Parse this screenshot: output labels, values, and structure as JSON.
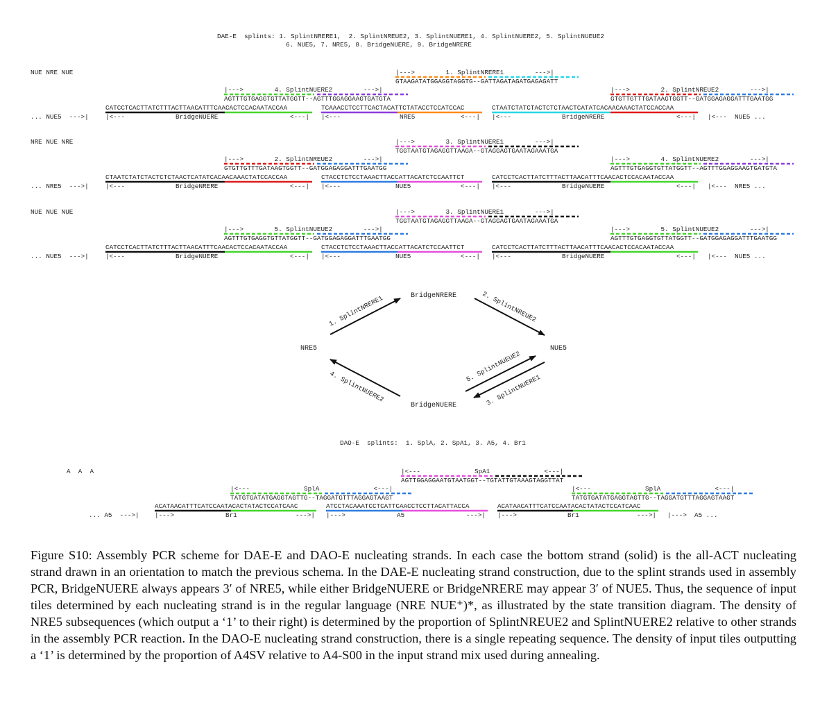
{
  "colors": {
    "black": "#111111",
    "green": "#44d62c",
    "purple": "#8b3cdc",
    "orange": "#ff8c1a",
    "cyan": "#28d7e6",
    "red": "#e01b1b",
    "blue": "#2f7de1",
    "magenta": "#e64fdc"
  },
  "dae": {
    "header_line1": "DAE-E  splints: 1. SplintNRERE1,  2. SplintNREUE2, 3. SplintNUERE1, 4. SplintNUERE2, 5. SplintNUEUE2",
    "header_line2": "6. NUE5, 7. NRE5, 8. BridgeNUERE, 9. BridgeNRERE",
    "panels": [
      {
        "seq_label": "NUE NRE NUE",
        "top": {
          "label": "|--->        1. SplintNRERE1        --->|",
          "seq": "GTAAGATATGGAGGTAGGTG--GATTAGATAGATGAGAGATT",
          "colors": [
            "orange",
            "cyan"
          ]
        },
        "mid_left": {
          "label": "|--->        4. SplintNUERE2        --->|",
          "seq": "AGTTTGTGAGGTGTTATGGTT--AGTTTGGAGGAAGTGATGTA",
          "colors": [
            "green",
            "purple"
          ]
        },
        "mid_right": {
          "label": "|--->        2. SplintNREUE2        --->|",
          "seq": "GTGTTGTTTGATAAGTGGTT--GATGGAGAGGATTTGAATGG",
          "colors": [
            "red",
            "blue"
          ]
        },
        "bottom": [
          {
            "seq": "CATCCTCACTTATCTTTACTTAACATTTCAACACTCCACAATACCAA",
            "colors": [
              "black",
              "green"
            ]
          },
          {
            "seq": "TCAAACCTCCTTCACTACATTCTATACCTCCATCCAC",
            "colors": [
              "purple",
              "orange"
            ]
          },
          {
            "seq": "CTAATCTATCTACTCTCTAACTCATATCACAACAAACTATCCACCAA",
            "colors": [
              "cyan",
              "red"
            ]
          }
        ],
        "ann_lead": "... NUE5  --->|",
        "ann_segments": [
          {
            "l": "|<---",
            "m": "BridgeNUERE",
            "r": "<---|"
          },
          {
            "l": "|<---",
            "m": "NRE5",
            "r": "<---|"
          },
          {
            "l": "|<---",
            "m": "BridgeNRERE",
            "r": "<---|"
          }
        ],
        "ann_tail": "|<---  NUE5 ..."
      },
      {
        "seq_label": "NRE NUE NRE",
        "top": {
          "label": "|--->        3. SplintNUERE1        --->|",
          "seq": "TGGTAATGTAGAGGTTAAGA--GTAGGAGTGAATAGAAATGA",
          "colors": [
            "magenta",
            "black"
          ]
        },
        "mid_left": {
          "label": "|--->        2. SplintNREUE2        --->|",
          "seq": "GTGTTGTTTGATAAGTGGTT--GATGGAGAGGATTTGAATGG",
          "colors": [
            "red",
            "blue"
          ]
        },
        "mid_right": {
          "label": "|--->        4. SplintNUERE2        --->|",
          "seq": "AGTTTGTGAGGTGTTATGGTT--AGTTTGGAGGAAGTGATGTA",
          "colors": [
            "green",
            "purple"
          ]
        },
        "bottom": [
          {
            "seq": "CTAATCTATCTACTCTCTAACTCATATCACAACAAACTATCCACCAA",
            "colors": [
              "black",
              "red"
            ]
          },
          {
            "seq": "CTACCTCTCCTAAACTTACCATTACATCTCCAATTCT",
            "colors": [
              "blue",
              "magenta"
            ]
          },
          {
            "seq": "CATCCTCACTTATCTTTACTTAACATTTCAACACTCCACAATACCAA",
            "colors": [
              "black",
              "green"
            ]
          }
        ],
        "ann_lead": "... NRE5  --->|",
        "ann_segments": [
          {
            "l": "|<---",
            "m": "BridgeNRERE",
            "r": "<---|"
          },
          {
            "l": "|<---",
            "m": "NUE5",
            "r": "<---|"
          },
          {
            "l": "|<---",
            "m": "BridgeNUERE",
            "r": "<---|"
          }
        ],
        "ann_tail": "|<---  NRE5 ..."
      },
      {
        "seq_label": "NUE NUE NUE",
        "top": {
          "label": "|--->        3. SplintNUERE1        --->|",
          "seq": "TGGTAATGTAGAGGTTAAGA--GTAGGAGTGAATAGAAATGA",
          "colors": [
            "magenta",
            "black"
          ]
        },
        "mid_left": {
          "label": "|--->        5. SplintNUEUE2        --->|",
          "seq": "AGTTTGTGAGGTGTTATGGTT--GATGGAGAGGATTTGAATGG",
          "colors": [
            "green",
            "blue"
          ]
        },
        "mid_right": {
          "label": "|--->        5. SplintNUEUE2        --->|",
          "seq": "AGTTTGTGAGGTGTTATGGTT--GATGGAGAGGATTTGAATGG",
          "colors": [
            "green",
            "blue"
          ]
        },
        "bottom": [
          {
            "seq": "CATCCTCACTTATCTTTACTTAACATTTCAACACTCCACAATACCAA",
            "colors": [
              "black",
              "green"
            ]
          },
          {
            "seq": "CTACCTCTCCTAAACTTACCATTACATCTCCAATTCT",
            "colors": [
              "blue",
              "magenta"
            ]
          },
          {
            "seq": "CATCCTCACTTATCTTTACTTAACATTTCAACACTCCACAATACCAA",
            "colors": [
              "black",
              "green"
            ]
          }
        ],
        "ann_lead": "... NUE5  --->|",
        "ann_segments": [
          {
            "l": "|<---",
            "m": "BridgeNUERE",
            "r": "<---|"
          },
          {
            "l": "|<---",
            "m": "NUE5",
            "r": "<---|"
          },
          {
            "l": "|<---",
            "m": "BridgeNUERE",
            "r": "<---|"
          }
        ],
        "ann_tail": "|<---  NUE5 ..."
      }
    ]
  },
  "state_diagram": {
    "nodes": {
      "bridge_nrere": "BridgeNRERE",
      "nre5": "NRE5",
      "nue5": "NUE5",
      "bridge_nuere": "BridgeNUERE"
    },
    "edges": {
      "e1": "1. SplintNRERE1",
      "e2": "2. SplintNREUE2",
      "e3": "3. SplintNUERE1",
      "e4": "4. SplintNUERE2",
      "e5": "5. SplintNUEUE2"
    }
  },
  "dao": {
    "header": "DAO-E  splints:  1. SplA, 2. SpA1, 3. A5, 4. Br1",
    "seq_label": "A  A  A",
    "top": {
      "label": "|<---              SpA1              <---|",
      "seq": "AGTTGGAGGAATGTAATGGT--TGTATTGTAAAGTAGGTTAT",
      "colors": [
        "magenta",
        "black"
      ]
    },
    "mid_left": {
      "label": "|<---              SplA              <---|",
      "seq": "TATGTGATATGAGGTAGTTG--TAGGATGTTTAGGAGTAAGT",
      "colors": [
        "green",
        "blue"
      ]
    },
    "mid_right": {
      "label": "|<---              SplA              <---|",
      "seq": "TATGTGATATGAGGTAGTTG--TAGGATGTTTAGGAGTAAGT",
      "colors": [
        "green",
        "blue"
      ]
    },
    "bottom": [
      {
        "seq": "ACATAACATTTCATCCAATACACTATACTCCATCAAC",
        "colors": [
          "black",
          "green"
        ]
      },
      {
        "seq": "ATCCTACAAATCCTCATTCAACCTCCTTACATTACCA",
        "colors": [
          "blue",
          "magenta"
        ]
      },
      {
        "seq": "ACATAACATTTCATCCAATACACTATACTCCATCAAC",
        "colors": [
          "black",
          "green"
        ]
      }
    ],
    "ann_lead": "... A5  --->|",
    "ann_segments": [
      {
        "l": "|--->",
        "m": "Br1",
        "r": "--->|"
      },
      {
        "l": "|--->",
        "m": "A5",
        "r": "--->|"
      },
      {
        "l": "|--->",
        "m": "Br1",
        "r": "--->|"
      }
    ],
    "ann_tail": "|--->  A5 ..."
  },
  "caption": "Figure S10: Assembly PCR scheme for DAE-E and DAO-E nucleating strands. In each case the bottom strand (solid) is the all-ACT nucleating strand drawn in an orientation to match the previous schema. In the DAE-E nucleating strand construction, due to the splint strands used in assembly PCR, BridgeNUERE always appears 3′ of NRE5, while either BridgeNUERE or BridgeNRERE may appear 3′ of NUE5. Thus, the sequence of input tiles determined by each nucleating strand is in the regular language (NRE NUE⁺)*, as illustrated by the state transition diagram. The density of NRE5 subsequences (which output a ‘1’ to their right) is determined by the proportion of SplintNREUE2 and SplintNUERE2 relative to other strands in the assembly PCR reaction. In the DAO-E nucleating strand construction, there is a single repeating sequence. The density of input tiles outputting a ‘1’ is determined by the proportion of A4SV relative to A4-S00 in the input strand mix used during annealing."
}
